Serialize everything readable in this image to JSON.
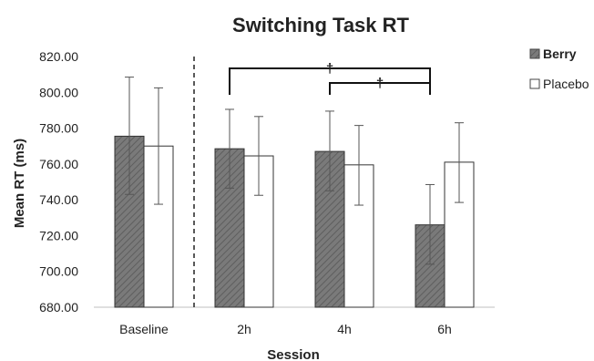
{
  "chart_data": {
    "type": "bar",
    "title": "Switching Task RT",
    "xlabel": "Session",
    "ylabel": "Mean RT (ms)",
    "categories": [
      "Baseline",
      "2h",
      "4h",
      "6h"
    ],
    "ylim": [
      680,
      820
    ],
    "yticks": [
      680,
      700,
      720,
      740,
      760,
      780,
      800,
      820
    ],
    "ytick_labels": [
      "680.00",
      "700.00",
      "720.00",
      "740.00",
      "760.00",
      "780.00",
      "800.00",
      "820.00"
    ],
    "series": [
      {
        "name": "Berry",
        "values": [
          775.5,
          768.5,
          767.0,
          726.0
        ],
        "err_low": [
          743,
          746.5,
          745,
          704
        ],
        "err_high": [
          808.5,
          790.5,
          789.5,
          748.5
        ],
        "color": "#808080",
        "pattern": "diagonal-hatch"
      },
      {
        "name": "Placebo",
        "values": [
          770.0,
          764.5,
          759.5,
          761.0
        ],
        "err_low": [
          737.5,
          742.5,
          737,
          738.5
        ],
        "err_high": [
          802.5,
          786.5,
          781.5,
          783.0
        ],
        "color": "#ffffff",
        "pattern": "none"
      }
    ],
    "separator_after_category": "Baseline",
    "significance_markers": [
      {
        "from": "2h",
        "to": "6h",
        "symbol": "†"
      },
      {
        "from": "4h",
        "to": "6h",
        "symbol": "†"
      }
    ],
    "legend_position": "top-right",
    "grid": false
  }
}
